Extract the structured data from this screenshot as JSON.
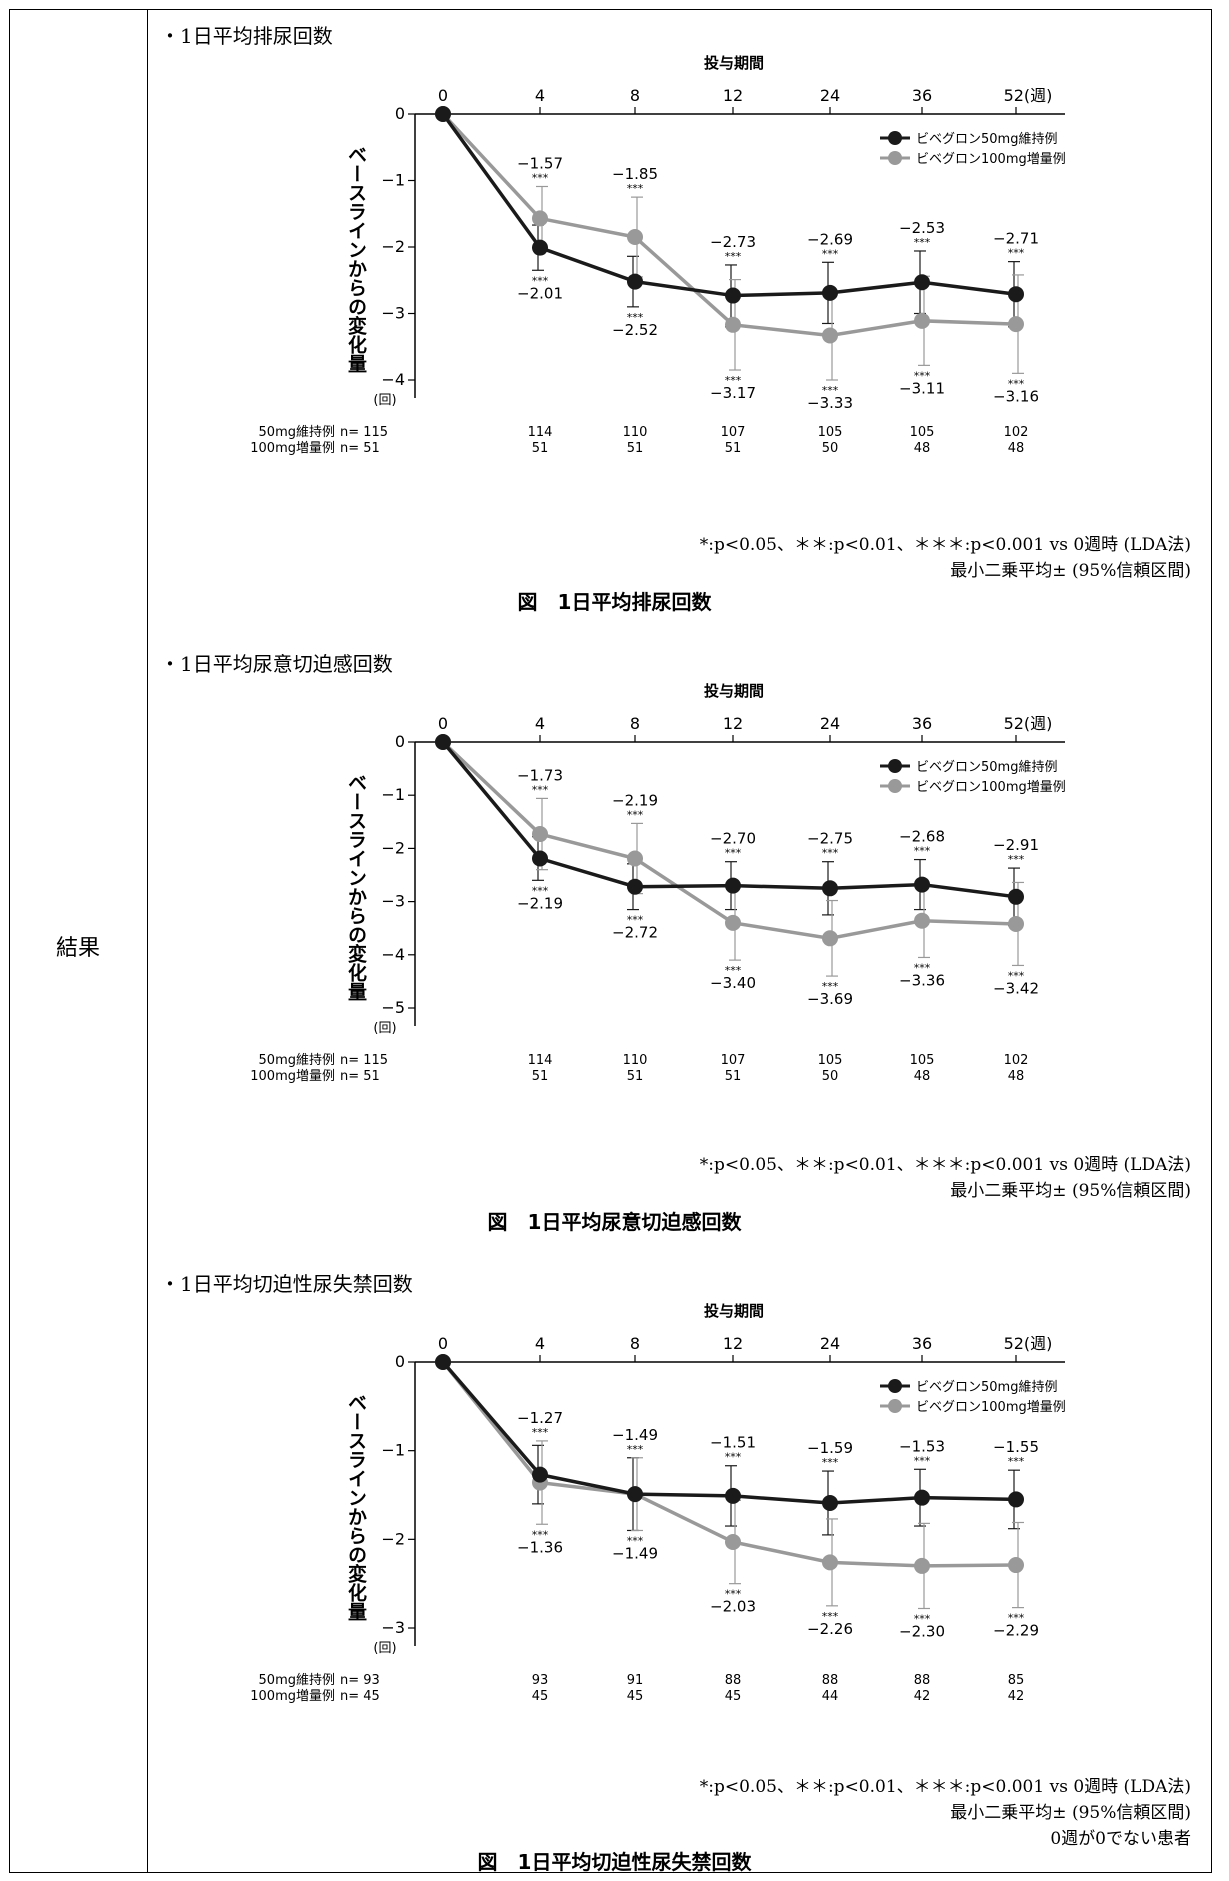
{
  "row_label": "結果",
  "chart_data": [
    {
      "type": "line",
      "section_title": "・1日平均排尿回数",
      "x_title": "投与期間",
      "x_ticks": [
        "0",
        "4",
        "8",
        "12",
        "24",
        "36",
        "52(週)"
      ],
      "ylabel": "ベースラインからの変化量",
      "y_unit": "(回)",
      "ylim": [
        -4,
        0
      ],
      "y_ticks": [
        0,
        -1,
        -2,
        -3,
        -4
      ],
      "y_tick_labels": [
        "0",
        "−1",
        "−2",
        "−3",
        "−4"
      ],
      "sig": "***",
      "series": [
        {
          "name": "ビベグロン50mg維持例",
          "color": "#1a1a1a",
          "values": [
            0,
            -2.01,
            -2.52,
            -2.73,
            -2.69,
            -2.53,
            -2.71
          ],
          "labels": [
            "",
            "−2.01",
            "−2.52",
            "−2.73",
            "−2.69",
            "−2.53",
            "−2.71"
          ],
          "ci_low": [
            0,
            -2.35,
            -2.9,
            -3.2,
            -3.15,
            -3.0,
            -3.2
          ],
          "ci_high": [
            0,
            -1.67,
            -2.14,
            -2.27,
            -2.23,
            -2.06,
            -2.22
          ]
        },
        {
          "name": "ビベグロン100mg増量例",
          "color": "#999999",
          "values": [
            0,
            -1.57,
            -1.85,
            -3.17,
            -3.33,
            -3.11,
            -3.16
          ],
          "labels": [
            "",
            "−1.57",
            "−1.85",
            "−3.17",
            "−3.33",
            "−3.11",
            "−3.16"
          ],
          "ci_low": [
            0,
            -2.05,
            -2.45,
            -3.85,
            -4.0,
            -3.78,
            -3.9
          ],
          "ci_high": [
            0,
            -1.09,
            -1.25,
            -2.49,
            -2.66,
            -2.44,
            -2.42
          ]
        }
      ],
      "n_rows": [
        {
          "label": "50mg維持例",
          "prefix": "n= 115",
          "values": [
            "",
            "114",
            "110",
            "107",
            "105",
            "105",
            "102"
          ]
        },
        {
          "label": "100mg増量例",
          "prefix": "n= 51",
          "values": [
            "",
            "51",
            "51",
            "51",
            "50",
            "48",
            "48"
          ]
        }
      ],
      "footnotes": [
        "*:p<0.05、＊＊:p<0.01、＊＊＊:p<0.001 vs 0週時 (LDA法)",
        "最小二乗平均± (95%信頼区間)"
      ],
      "caption": "図　1日平均排尿回数"
    },
    {
      "type": "line",
      "section_title": "・1日平均尿意切迫感回数",
      "x_title": "投与期間",
      "x_ticks": [
        "0",
        "4",
        "8",
        "12",
        "24",
        "36",
        "52(週)"
      ],
      "ylabel": "ベースラインからの変化量",
      "y_unit": "(回)",
      "ylim": [
        -5,
        0
      ],
      "y_ticks": [
        0,
        -1,
        -2,
        -3,
        -4,
        -5
      ],
      "y_tick_labels": [
        "0",
        "−1",
        "−2",
        "−3",
        "−4",
        "−5"
      ],
      "sig": "***",
      "series": [
        {
          "name": "ビベグロン50mg維持例",
          "color": "#1a1a1a",
          "values": [
            0,
            -2.19,
            -2.72,
            -2.7,
            -2.75,
            -2.68,
            -2.91
          ],
          "labels": [
            "",
            "−2.19",
            "−2.72",
            "−2.70",
            "−2.75",
            "−2.68",
            "−2.91"
          ],
          "ci_low": [
            0,
            -2.6,
            -3.15,
            -3.15,
            -3.25,
            -3.15,
            -3.45
          ],
          "ci_high": [
            0,
            -1.78,
            -2.29,
            -2.25,
            -2.25,
            -2.21,
            -2.37
          ]
        },
        {
          "name": "ビベグロン100mg増量例",
          "color": "#999999",
          "values": [
            0,
            -1.73,
            -2.19,
            -3.4,
            -3.69,
            -3.36,
            -3.42
          ],
          "labels": [
            "",
            "−1.73",
            "−2.19",
            "−3.40",
            "−3.69",
            "−3.36",
            "−3.42"
          ],
          "ci_low": [
            0,
            -2.4,
            -2.85,
            -4.1,
            -4.4,
            -4.05,
            -4.2
          ],
          "ci_high": [
            0,
            -1.06,
            -1.53,
            -2.7,
            -2.98,
            -2.67,
            -2.64
          ]
        }
      ],
      "n_rows": [
        {
          "label": "50mg維持例",
          "prefix": "n= 115",
          "values": [
            "",
            "114",
            "110",
            "107",
            "105",
            "105",
            "102"
          ]
        },
        {
          "label": "100mg増量例",
          "prefix": "n= 51",
          "values": [
            "",
            "51",
            "51",
            "51",
            "50",
            "48",
            "48"
          ]
        }
      ],
      "footnotes": [
        "*:p<0.05、＊＊:p<0.01、＊＊＊:p<0.001 vs 0週時 (LDA法)",
        "最小二乗平均± (95%信頼区間)"
      ],
      "caption": "図　1日平均尿意切迫感回数"
    },
    {
      "type": "line",
      "section_title": "・1日平均切迫性尿失禁回数",
      "x_title": "投与期間",
      "x_ticks": [
        "0",
        "4",
        "8",
        "12",
        "24",
        "36",
        "52(週)"
      ],
      "ylabel": "ベースラインからの変化量",
      "y_unit": "(回)",
      "ylim": [
        -3,
        0
      ],
      "y_ticks": [
        0,
        -1,
        -2,
        -3
      ],
      "y_tick_labels": [
        "0",
        "−1",
        "−2",
        "−3"
      ],
      "sig": "***",
      "series": [
        {
          "name": "ビベグロン50mg維持例",
          "color": "#1a1a1a",
          "values": [
            0,
            -1.27,
            -1.49,
            -1.51,
            -1.59,
            -1.53,
            -1.55
          ],
          "labels": [
            "",
            "−1.27",
            "−1.49",
            "−1.51",
            "−1.59",
            "−1.53",
            "−1.55"
          ],
          "ci_low": [
            0,
            -1.6,
            -1.9,
            -1.85,
            -1.95,
            -1.85,
            -1.88
          ],
          "ci_high": [
            0,
            -0.94,
            -1.08,
            -1.17,
            -1.23,
            -1.21,
            -1.22
          ]
        },
        {
          "name": "ビベグロン100mg増量例",
          "color": "#999999",
          "values": [
            0,
            -1.36,
            -1.49,
            -2.03,
            -2.26,
            -2.3,
            -2.29
          ],
          "labels": [
            "",
            "−1.36",
            "−1.49",
            "−2.03",
            "−2.26",
            "−2.30",
            "−2.29"
          ],
          "ci_low": [
            0,
            -1.83,
            -1.9,
            -2.5,
            -2.75,
            -2.78,
            -2.77
          ],
          "ci_high": [
            0,
            -0.89,
            -1.08,
            -1.56,
            -1.77,
            -1.82,
            -1.81
          ]
        }
      ],
      "n_rows": [
        {
          "label": "50mg維持例",
          "prefix": "n= 93",
          "values": [
            "",
            "93",
            "91",
            "88",
            "88",
            "88",
            "85"
          ]
        },
        {
          "label": "100mg増量例",
          "prefix": "n= 45",
          "values": [
            "",
            "45",
            "45",
            "45",
            "44",
            "42",
            "42"
          ]
        }
      ],
      "footnotes": [
        "*:p<0.05、＊＊:p<0.01、＊＊＊:p<0.001 vs 0週時 (LDA法)",
        "最小二乗平均± (95%信頼区間)",
        "0週が0でない患者"
      ],
      "caption": "図　1日平均切迫性尿失禁回数"
    }
  ]
}
